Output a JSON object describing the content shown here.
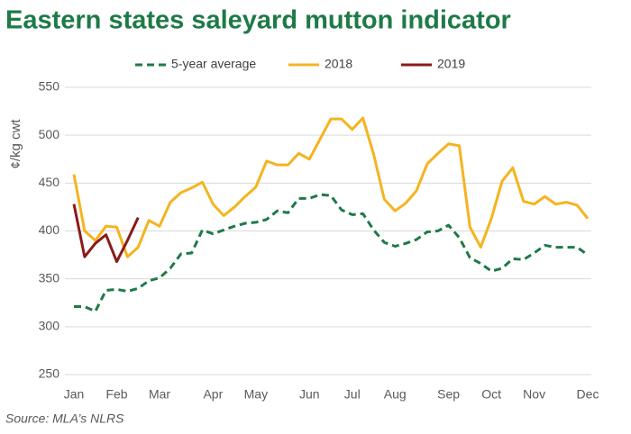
{
  "chart_data": {
    "type": "line",
    "title": "Eastern states saleyard mutton indicator",
    "y_label": "¢/kg cwt",
    "source": "Source: MLA’s NLRS",
    "categories": [
      "Jan",
      null,
      null,
      null,
      "Feb",
      null,
      null,
      null,
      "Mar",
      null,
      null,
      null,
      null,
      "Apr",
      null,
      null,
      null,
      "May",
      null,
      null,
      null,
      null,
      "Jun",
      null,
      null,
      null,
      "Jul",
      null,
      null,
      null,
      "Aug",
      null,
      null,
      null,
      null,
      "Sep",
      null,
      null,
      null,
      "Oct",
      null,
      null,
      null,
      "Nov",
      null,
      null,
      null,
      null,
      "Dec"
    ],
    "series": [
      {
        "name": "5-year average",
        "color": "#1e7a47",
        "dash": true,
        "values": [
          321,
          321,
          316,
          338,
          339,
          337,
          340,
          348,
          351,
          361,
          376,
          377,
          401,
          397,
          401,
          405,
          408,
          409,
          412,
          421,
          419,
          434,
          434,
          438,
          437,
          422,
          417,
          418,
          401,
          388,
          384,
          387,
          391,
          399,
          400,
          406,
          393,
          372,
          366,
          358,
          361,
          371,
          370,
          377,
          385,
          383,
          383,
          383,
          375
        ]
      },
      {
        "name": "2018",
        "color": "#f5b41e",
        "values": [
          459,
          400,
          390,
          405,
          404,
          373,
          383,
          411,
          405,
          430,
          440,
          445,
          451,
          428,
          416,
          425,
          436,
          446,
          473,
          469,
          469,
          481,
          475,
          496,
          517,
          517,
          506,
          518,
          480,
          433,
          421,
          429,
          442,
          470,
          481,
          491,
          489,
          404,
          383,
          413,
          452,
          466,
          431,
          428,
          436,
          428,
          430,
          427,
          413
        ]
      },
      {
        "name": "2019",
        "color": "#8b1a1a",
        "values": [
          428,
          373,
          387,
          396,
          368,
          390,
          414,
          null,
          null,
          null,
          null,
          null,
          null,
          null,
          null,
          null,
          null,
          null,
          null,
          null,
          null,
          null,
          null,
          null,
          null,
          null,
          null,
          null,
          null,
          null,
          null,
          null,
          null,
          null,
          null,
          null,
          null,
          null,
          null,
          null,
          null,
          null,
          null,
          null,
          null,
          null,
          null,
          null,
          null
        ]
      }
    ],
    "ylim": [
      250,
      550
    ],
    "yticks": [
      250,
      300,
      350,
      400,
      450,
      500,
      550
    ],
    "grid": true
  }
}
